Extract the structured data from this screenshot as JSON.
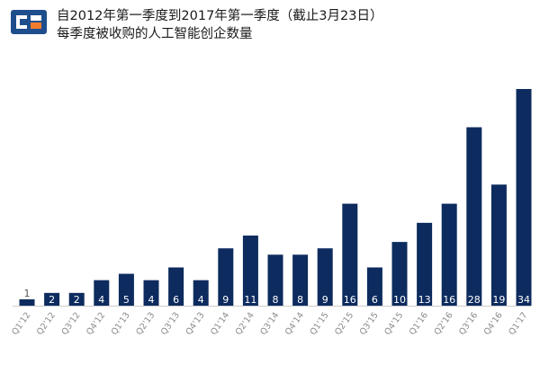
{
  "title": {
    "line1": "自2012年第一季度到2017年第一季度（截止3月23日）",
    "line2": "每季度被收购的人工智能创企数量"
  },
  "colors": {
    "bar": "#0d2b5e",
    "logo_blue": "#1f4e8c",
    "logo_orange": "#f07d2e",
    "value_on_bar": "#ffffff",
    "value_above_bar": "#555555",
    "baseline": "#cccccc"
  },
  "icons": {
    "logo": "company-logo-icon"
  },
  "chart_data": {
    "type": "bar",
    "title": "每季度被收购的人工智能创企数量",
    "categories": [
      "Q1'12",
      "Q2'12",
      "Q3'12",
      "Q4'12",
      "Q1'13",
      "Q2'13",
      "Q3'13",
      "Q4'13",
      "Q1'14",
      "Q2'14",
      "Q3'14",
      "Q4'14",
      "Q1'15",
      "Q2'15",
      "Q3'15",
      "Q4'15",
      "Q1'16",
      "Q2'16",
      "Q3'16",
      "Q4'16",
      "Q1'17"
    ],
    "values": [
      1,
      2,
      2,
      4,
      5,
      4,
      6,
      4,
      9,
      11,
      8,
      8,
      9,
      16,
      6,
      10,
      13,
      16,
      28,
      19,
      34
    ],
    "ylim": [
      0,
      34
    ],
    "grid": false,
    "legend": false
  }
}
